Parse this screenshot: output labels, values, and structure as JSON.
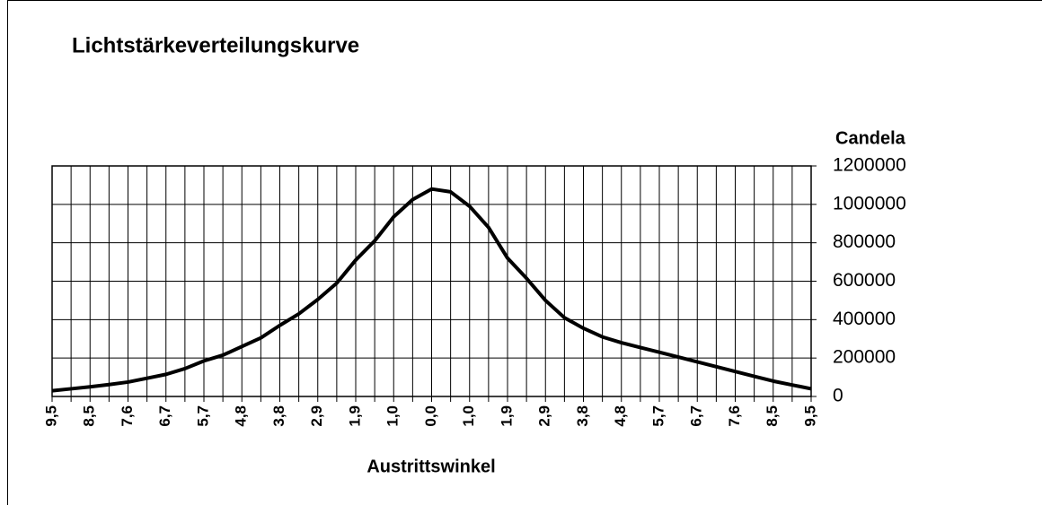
{
  "chart_data": {
    "type": "line",
    "title": "Lichtstärkeverteilungskurve",
    "x_label": "Austrittswinkel",
    "y_label": "Candela",
    "categories": [
      "9,5",
      null,
      "8,5",
      null,
      "7,6",
      null,
      "6,7",
      null,
      "5,7",
      null,
      "4,8",
      null,
      "3,8",
      null,
      "2,9",
      null,
      "1,9",
      null,
      "1,0",
      null,
      "0,0",
      null,
      "1,0",
      null,
      "1,9",
      null,
      "2,9",
      null,
      "3,8",
      null,
      "4,8",
      null,
      "5,7",
      null,
      "6,7",
      null,
      "7,6",
      null,
      "8,5",
      null,
      "9,5"
    ],
    "series": [
      {
        "name": "Candela",
        "color": "#000000",
        "values": [
          30000,
          40000,
          50000,
          62000,
          75000,
          95000,
          115000,
          145000,
          185000,
          215000,
          260000,
          305000,
          370000,
          430000,
          505000,
          590000,
          710000,
          810000,
          935000,
          1025000,
          1080000,
          1065000,
          990000,
          880000,
          720000,
          615000,
          500000,
          410000,
          355000,
          310000,
          280000,
          255000,
          230000,
          205000,
          180000,
          155000,
          130000,
          105000,
          80000,
          60000,
          40000
        ]
      }
    ],
    "ylim": [
      0,
      1200000
    ],
    "yticks": [
      0,
      200000,
      400000,
      600000,
      800000,
      1000000,
      1200000
    ],
    "grid": true,
    "y_axis_side": "right"
  }
}
